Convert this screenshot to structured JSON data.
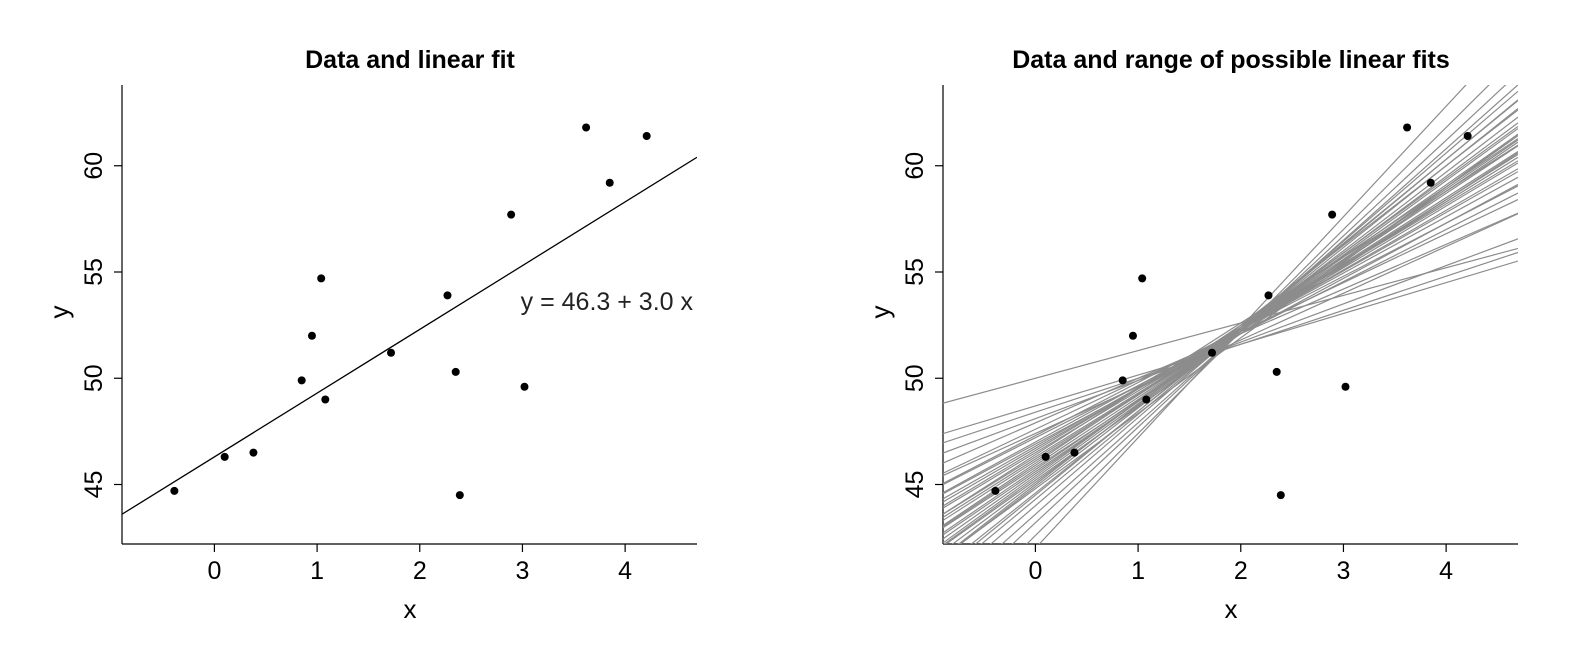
{
  "chart_data": [
    {
      "type": "scatter",
      "title": "Data and linear fit",
      "xlabel": "x",
      "ylabel": "y",
      "xlim": [
        -0.9,
        4.7
      ],
      "ylim": [
        42.2,
        63.8
      ],
      "xticks": [
        0,
        1,
        2,
        3,
        4
      ],
      "yticks": [
        45,
        50,
        55,
        60
      ],
      "points": [
        {
          "x": -0.39,
          "y": 44.7
        },
        {
          "x": 0.1,
          "y": 46.3
        },
        {
          "x": 0.38,
          "y": 46.5
        },
        {
          "x": 0.85,
          "y": 49.9
        },
        {
          "x": 0.95,
          "y": 52.0
        },
        {
          "x": 1.04,
          "y": 54.7
        },
        {
          "x": 1.08,
          "y": 49.0
        },
        {
          "x": 1.72,
          "y": 51.2
        },
        {
          "x": 2.27,
          "y": 53.9
        },
        {
          "x": 2.35,
          "y": 50.3
        },
        {
          "x": 2.39,
          "y": 44.5
        },
        {
          "x": 2.89,
          "y": 57.7
        },
        {
          "x": 3.02,
          "y": 49.6
        },
        {
          "x": 3.62,
          "y": 61.8
        },
        {
          "x": 3.85,
          "y": 59.2
        },
        {
          "x": 4.21,
          "y": 61.4
        }
      ],
      "fit": {
        "intercept": 46.3,
        "slope": 3.0
      },
      "annotation": "y = 46.3 + 3.0 x"
    },
    {
      "type": "scatter",
      "title": "Data and range of possible linear fits",
      "xlabel": "x",
      "ylabel": "y",
      "xlim": [
        -0.9,
        4.7
      ],
      "ylim": [
        42.2,
        63.8
      ],
      "xticks": [
        0,
        1,
        2,
        3,
        4
      ],
      "yticks": [
        45,
        50,
        55,
        60
      ],
      "points": [
        {
          "x": -0.39,
          "y": 44.7
        },
        {
          "x": 0.1,
          "y": 46.3
        },
        {
          "x": 0.38,
          "y": 46.5
        },
        {
          "x": 0.85,
          "y": 49.9
        },
        {
          "x": 0.95,
          "y": 52.0
        },
        {
          "x": 1.04,
          "y": 54.7
        },
        {
          "x": 1.08,
          "y": 49.0
        },
        {
          "x": 1.72,
          "y": 51.2
        },
        {
          "x": 2.27,
          "y": 53.9
        },
        {
          "x": 2.35,
          "y": 50.3
        },
        {
          "x": 2.39,
          "y": 44.5
        },
        {
          "x": 2.89,
          "y": 57.7
        },
        {
          "x": 3.02,
          "y": 49.6
        },
        {
          "x": 3.62,
          "y": 61.8
        },
        {
          "x": 3.85,
          "y": 59.2
        },
        {
          "x": 4.21,
          "y": 61.4
        }
      ],
      "fit_lines": [
        {
          "intercept": 50.0,
          "slope": 1.3
        },
        {
          "intercept": 48.7,
          "slope": 1.45
        },
        {
          "intercept": 48.4,
          "slope": 1.6
        },
        {
          "intercept": 48.1,
          "slope": 1.8
        },
        {
          "intercept": 47.6,
          "slope": 2.3
        },
        {
          "intercept": 47.9,
          "slope": 2.1
        },
        {
          "intercept": 47.3,
          "slope": 2.5
        },
        {
          "intercept": 47.0,
          "slope": 2.65
        },
        {
          "intercept": 46.8,
          "slope": 2.75
        },
        {
          "intercept": 46.5,
          "slope": 2.9
        },
        {
          "intercept": 46.3,
          "slope": 3.0
        },
        {
          "intercept": 46.1,
          "slope": 3.1
        },
        {
          "intercept": 45.9,
          "slope": 3.2
        },
        {
          "intercept": 45.7,
          "slope": 3.3
        },
        {
          "intercept": 45.5,
          "slope": 3.4
        },
        {
          "intercept": 45.3,
          "slope": 3.5
        },
        {
          "intercept": 45.1,
          "slope": 3.6
        },
        {
          "intercept": 44.9,
          "slope": 3.7
        },
        {
          "intercept": 44.6,
          "slope": 3.85
        },
        {
          "intercept": 44.3,
          "slope": 4.0
        },
        {
          "intercept": 44.0,
          "slope": 4.15
        },
        {
          "intercept": 43.6,
          "slope": 4.3
        },
        {
          "intercept": 43.2,
          "slope": 4.5
        },
        {
          "intercept": 42.6,
          "slope": 4.8
        },
        {
          "intercept": 42.0,
          "slope": 5.2
        },
        {
          "intercept": 46.9,
          "slope": 2.6
        },
        {
          "intercept": 46.6,
          "slope": 2.9
        },
        {
          "intercept": 46.2,
          "slope": 3.05
        },
        {
          "intercept": 45.8,
          "slope": 3.15
        },
        {
          "intercept": 45.6,
          "slope": 3.3
        },
        {
          "intercept": 45.2,
          "slope": 3.45
        },
        {
          "intercept": 44.8,
          "slope": 3.55
        },
        {
          "intercept": 47.2,
          "slope": 2.45
        },
        {
          "intercept": 46.4,
          "slope": 3.1
        },
        {
          "intercept": 46.0,
          "slope": 3.25
        },
        {
          "intercept": 45.4,
          "slope": 3.5
        },
        {
          "intercept": 45.0,
          "slope": 3.75
        },
        {
          "intercept": 44.5,
          "slope": 3.95
        },
        {
          "intercept": 47.4,
          "slope": 2.2
        },
        {
          "intercept": 46.7,
          "slope": 2.8
        }
      ]
    }
  ]
}
